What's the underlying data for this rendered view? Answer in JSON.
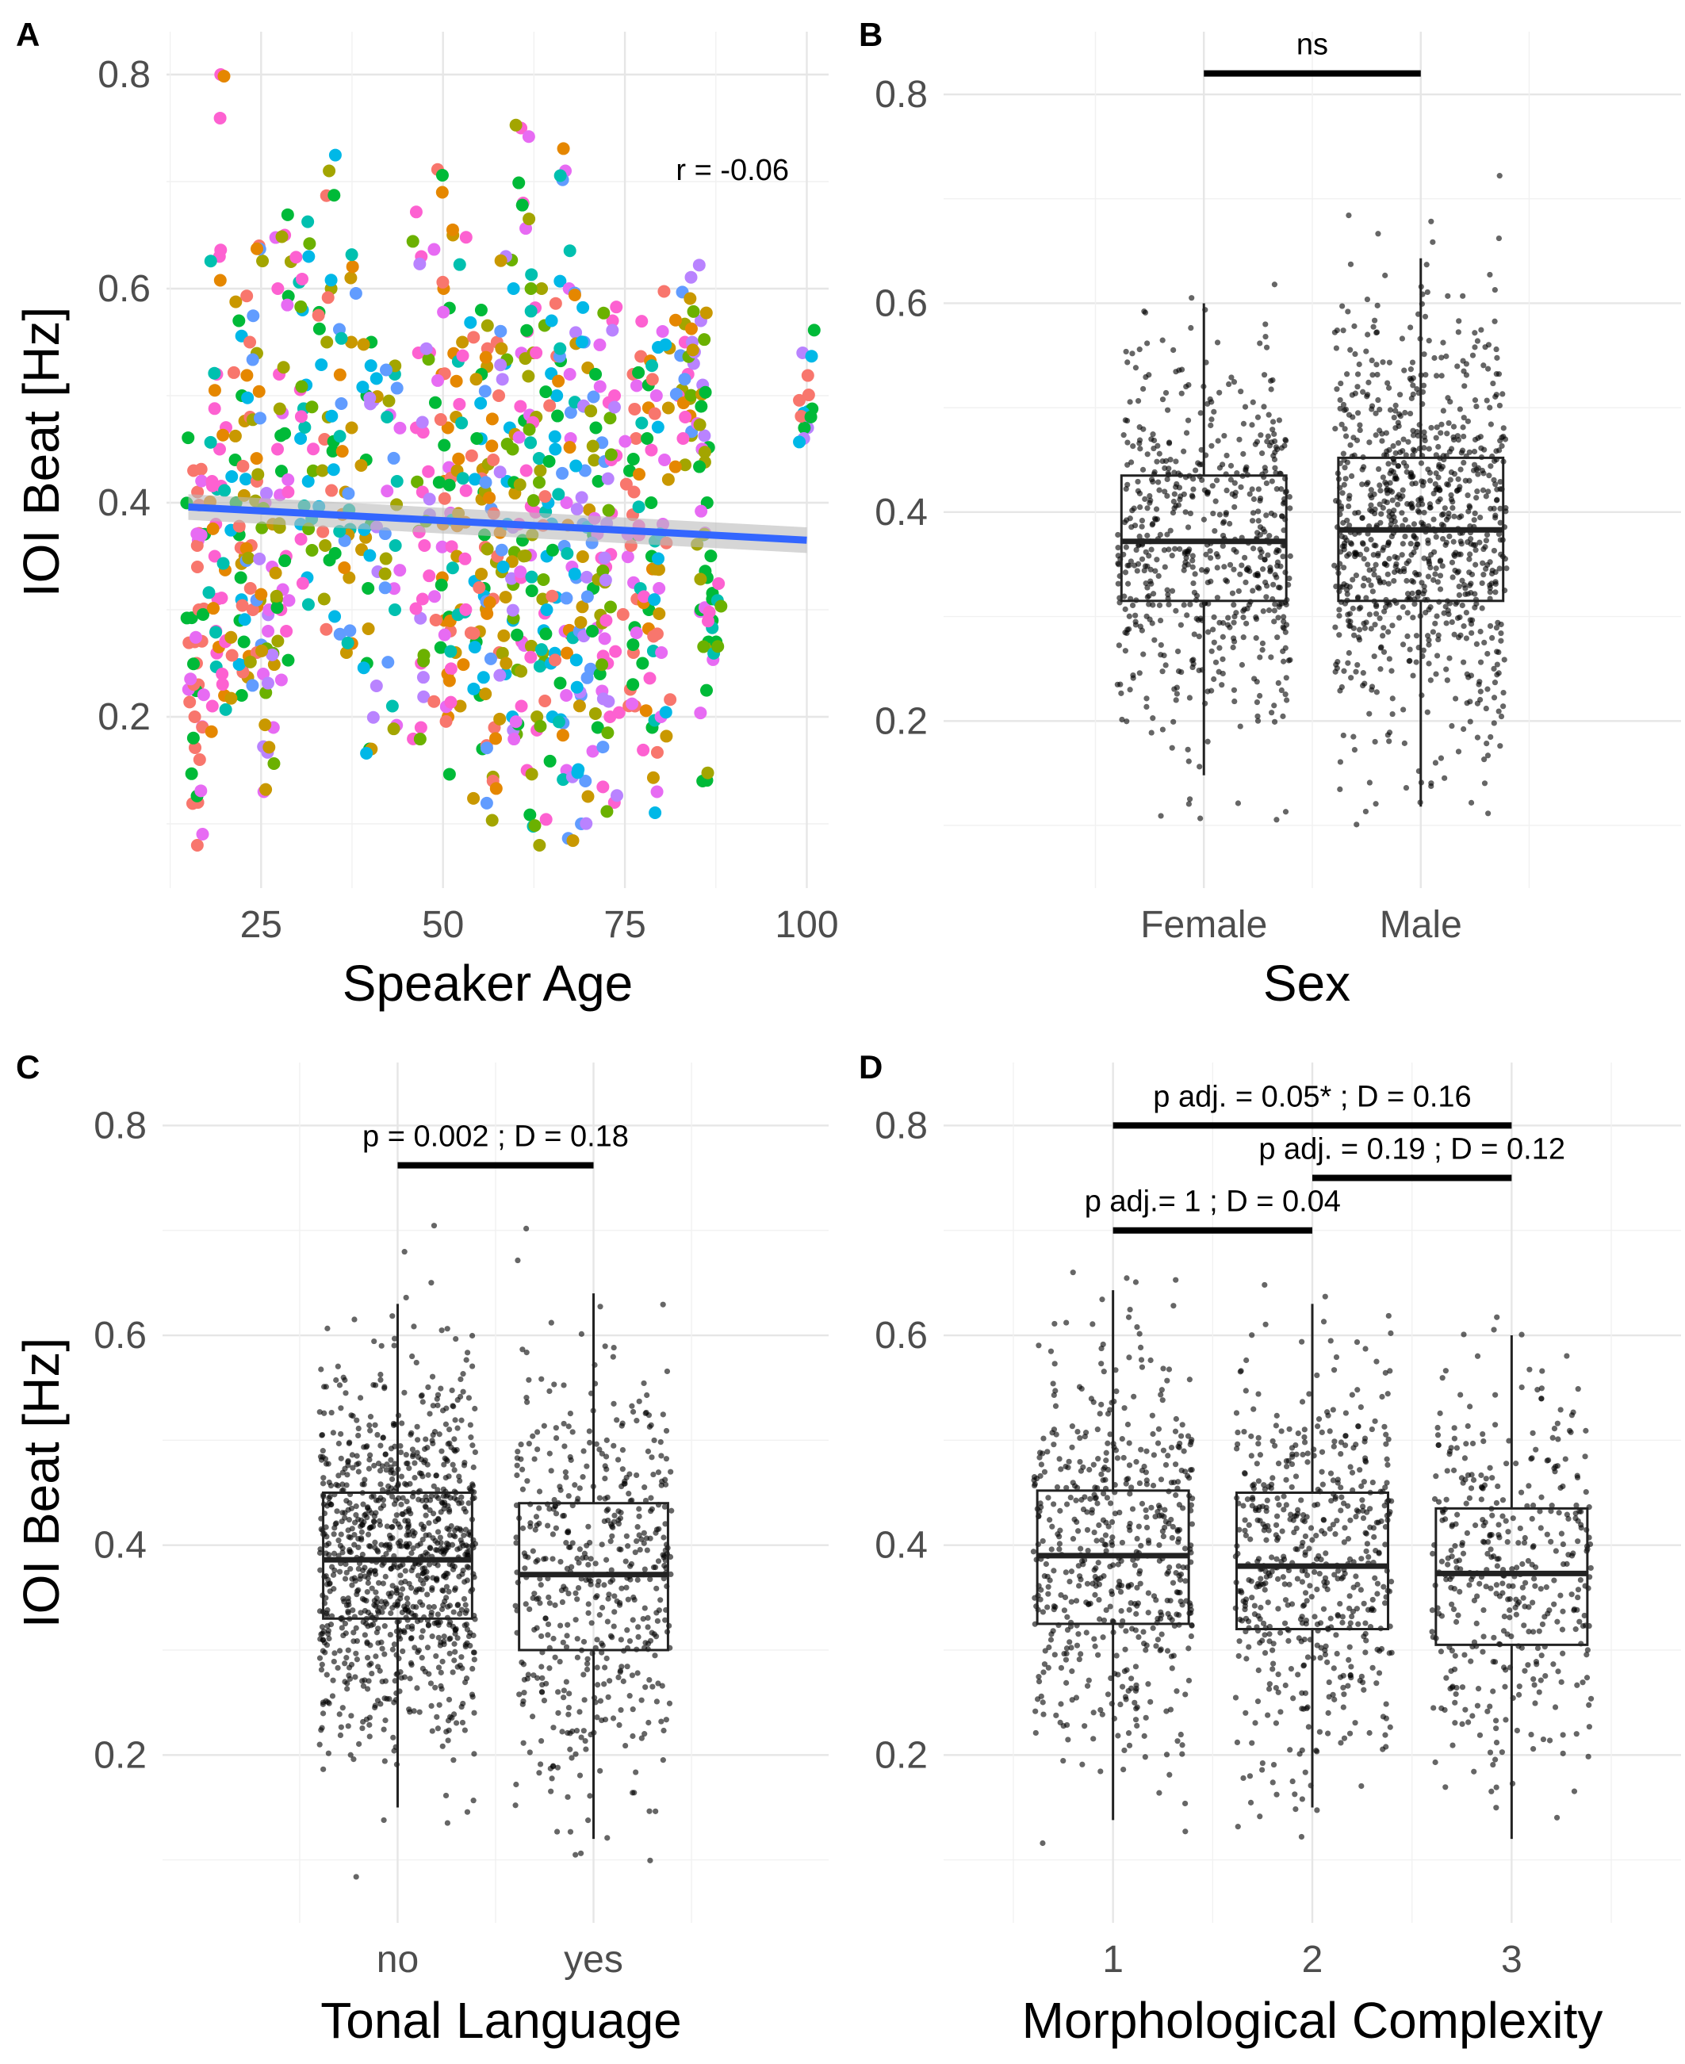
{
  "figure": {
    "panels": [
      {
        "id": "A",
        "letter": "A",
        "xlabel": "Speaker Age",
        "ylabel": "IOI Beat [Hz]"
      },
      {
        "id": "B",
        "letter": "B",
        "xlabel": "Sex",
        "ylabel": ""
      },
      {
        "id": "C",
        "letter": "C",
        "xlabel": "Tonal Language",
        "ylabel": "IOI Beat [Hz]"
      },
      {
        "id": "D",
        "letter": "D",
        "xlabel": "Morphological Complexity",
        "ylabel": ""
      }
    ]
  },
  "chart_data": [
    {
      "panel": "A",
      "type": "scatter",
      "xlabel": "Speaker Age",
      "ylabel": "IOI Beat [Hz]",
      "xlim": [
        12,
        103
      ],
      "ylim": [
        0.04,
        0.84
      ],
      "xticks": [
        25,
        50,
        75,
        100
      ],
      "yticks": [
        0.2,
        0.4,
        0.6,
        0.8
      ],
      "grid": true,
      "legend": "none",
      "point_colors": [
        "#F8766D",
        "#E58700",
        "#C99800",
        "#A3A500",
        "#6BB100",
        "#00BA38",
        "#00C0AF",
        "#00B8E7",
        "#619CFF",
        "#B983FF",
        "#E76BF3",
        "#FD61D1"
      ],
      "regression": {
        "x": [
          15,
          100
        ],
        "y": [
          0.396,
          0.365
        ],
        "color": "#3366FF",
        "ci_color": "#BBBBBB"
      },
      "annotation": "r = -0.06",
      "points_note": "dense colored clusters per speaker group between ages 15 and 100, IOI 0.08-0.80",
      "point_clusters": [
        {
          "age": 16,
          "color": "#F8766D",
          "values": [
            0.08,
            0.12,
            0.16,
            0.2,
            0.23,
            0.25,
            0.27,
            0.3,
            0.34,
            0.36,
            0.41,
            0.43
          ]
        },
        {
          "age": 19,
          "color": "#FD61D1",
          "values": [
            0.8,
            0.63,
            0.52,
            0.45,
            0.42,
            0.38,
            0.35,
            0.31,
            0.28,
            0.24,
            0.21
          ]
        },
        {
          "age": 22,
          "color": "#00BA38",
          "values": [
            0.57,
            0.5,
            0.44,
            0.4,
            0.37,
            0.33,
            0.29,
            0.27,
            0.22
          ]
        },
        {
          "age": 24,
          "color": "#F8766D",
          "values": [
            0.64,
            0.55,
            0.48,
            0.42,
            0.36,
            0.32,
            0.3,
            0.26
          ]
        },
        {
          "age": 26,
          "color": "#E76BF3",
          "values": [
            0.13,
            0.19,
            0.24,
            0.28,
            0.3,
            0.34,
            0.4
          ]
        },
        {
          "age": 28,
          "color": "#FD61D1",
          "values": [
            0.65,
            0.6,
            0.52,
            0.45,
            0.41,
            0.35,
            0.3,
            0.28
          ]
        },
        {
          "age": 31,
          "color": "#00B8E7",
          "values": [
            0.63,
            0.58,
            0.51,
            0.46,
            0.42,
            0.38,
            0.33
          ]
        },
        {
          "age": 34,
          "color": "#A3A500",
          "values": [
            0.71,
            0.6,
            0.55,
            0.48,
            0.43,
            0.36,
            0.31
          ]
        },
        {
          "age": 37,
          "color": "#C99800",
          "values": [
            0.61,
            0.55,
            0.47,
            0.41,
            0.37,
            0.33,
            0.26
          ]
        },
        {
          "age": 40,
          "color": "#00BA38",
          "values": [
            0.55,
            0.5,
            0.44,
            0.38,
            0.32,
            0.25,
            0.17
          ]
        },
        {
          "age": 43,
          "color": "#00C0AF",
          "values": [
            0.52,
            0.48,
            0.42,
            0.36,
            0.3,
            0.21
          ]
        },
        {
          "age": 47,
          "color": "#FD61D1",
          "values": [
            0.63,
            0.54,
            0.47,
            0.41,
            0.36,
            0.31,
            0.25,
            0.19
          ]
        },
        {
          "age": 50,
          "color": "#E58700",
          "values": [
            0.69,
            0.6,
            0.52,
            0.47,
            0.42,
            0.38,
            0.33,
            0.29,
            0.24,
            0.2
          ]
        },
        {
          "age": 52,
          "color": "#C99800",
          "values": [
            0.65,
            0.55,
            0.48,
            0.43,
            0.39,
            0.35,
            0.3,
            0.26,
            0.21
          ]
        },
        {
          "age": 55,
          "color": "#00BA38",
          "values": [
            0.58,
            0.52,
            0.46,
            0.41,
            0.37,
            0.32,
            0.27,
            0.22,
            0.17
          ]
        },
        {
          "age": 57,
          "color": "#F8766D",
          "values": [
            0.55,
            0.5,
            0.44,
            0.39,
            0.35,
            0.31,
            0.26,
            0.19,
            0.14
          ]
        },
        {
          "age": 59,
          "color": "#00B8E7",
          "values": [
            0.6,
            0.53,
            0.47,
            0.42,
            0.38,
            0.34,
            0.29,
            0.24,
            0.2
          ]
        },
        {
          "age": 61,
          "color": "#FD61D1",
          "values": [
            0.75,
            0.68,
            0.56,
            0.49,
            0.43,
            0.38,
            0.33,
            0.27,
            0.21,
            0.15
          ]
        },
        {
          "age": 63,
          "color": "#A3A500",
          "values": [
            0.6,
            0.54,
            0.48,
            0.43,
            0.37,
            0.31,
            0.26,
            0.2,
            0.08
          ]
        },
        {
          "age": 65,
          "color": "#00B8E7",
          "values": [
            0.57,
            0.5,
            0.45,
            0.4,
            0.35,
            0.3,
            0.25,
            0.2
          ]
        },
        {
          "age": 67,
          "color": "#E76BF3",
          "values": [
            0.71,
            0.6,
            0.52,
            0.46,
            0.4,
            0.34,
            0.28,
            0.22,
            0.15
          ]
        },
        {
          "age": 69,
          "color": "#619CFF",
          "values": [
            0.55,
            0.49,
            0.43,
            0.38,
            0.33,
            0.28,
            0.22,
            0.14,
            0.1
          ]
        },
        {
          "age": 71,
          "color": "#00BA38",
          "values": [
            0.52,
            0.47,
            0.42,
            0.37,
            0.32,
            0.28,
            0.24,
            0.19
          ]
        },
        {
          "age": 73,
          "color": "#FD61D1",
          "values": [
            0.57,
            0.5,
            0.44,
            0.39,
            0.34,
            0.29,
            0.25,
            0.2,
            0.12
          ]
        },
        {
          "age": 76,
          "color": "#F8766D",
          "values": [
            0.52,
            0.46,
            0.41,
            0.36,
            0.31,
            0.26,
            0.21
          ]
        },
        {
          "age": 78,
          "color": "#00BA38",
          "values": [
            0.51,
            0.46,
            0.4,
            0.35,
            0.3,
            0.25,
            0.19
          ]
        },
        {
          "age": 80,
          "color": "#E76BF3",
          "values": [
            0.56,
            0.5,
            0.44,
            0.38,
            0.32,
            0.26,
            0.2,
            0.13
          ]
        },
        {
          "age": 83,
          "color": "#FD61D1",
          "values": [
            0.55,
            0.52,
            0.5,
            0.48,
            0.46
          ]
        },
        {
          "age": 85,
          "color": "#B983FF",
          "values": [
            0.57,
            0.55,
            0.53,
            0.51
          ]
        },
        {
          "age": 86,
          "color": "#00BA38",
          "values": [
            0.49,
            0.45,
            0.4,
            0.37,
            0.33,
            0.3,
            0.27,
            0.14
          ]
        },
        {
          "age": 87,
          "color": "#00BA38",
          "values": [
            0.31,
            0.29,
            0.27
          ]
        },
        {
          "age": 100,
          "color": "#B983FF",
          "values": [
            0.54,
            0.48,
            0.47,
            0.46
          ]
        }
      ]
    },
    {
      "panel": "B",
      "type": "box",
      "xlabel": "Sex",
      "ylabel": "IOI Beat [Hz]",
      "categories": [
        "Female",
        "Male"
      ],
      "ylim": [
        0.04,
        0.86
      ],
      "yticks": [
        0.2,
        0.4,
        0.6,
        0.8
      ],
      "boxes": [
        {
          "q1": 0.315,
          "median": 0.372,
          "q3": 0.435,
          "whisker_low": 0.148,
          "whisker_high": 0.6,
          "n_points": 600,
          "point_min": 0.08,
          "point_max": 0.75
        },
        {
          "q1": 0.315,
          "median": 0.383,
          "q3": 0.452,
          "whisker_low": 0.118,
          "whisker_high": 0.643,
          "n_points": 900,
          "point_min": 0.08,
          "point_max": 0.8
        }
      ],
      "brackets": [
        {
          "from": 0,
          "to": 1,
          "y": 0.82,
          "label": "ns"
        }
      ]
    },
    {
      "panel": "C",
      "type": "box",
      "xlabel": "Tonal Language",
      "ylabel": "IOI Beat [Hz]",
      "categories": [
        "no",
        "yes"
      ],
      "ylim": [
        0.04,
        0.86
      ],
      "yticks": [
        0.2,
        0.4,
        0.6,
        0.8
      ],
      "boxes": [
        {
          "q1": 0.33,
          "median": 0.386,
          "q3": 0.45,
          "whisker_low": 0.15,
          "whisker_high": 0.63,
          "n_points": 1000,
          "point_min": 0.08,
          "point_max": 0.75
        },
        {
          "q1": 0.3,
          "median": 0.372,
          "q3": 0.44,
          "whisker_low": 0.12,
          "whisker_high": 0.64,
          "n_points": 500,
          "point_min": 0.08,
          "point_max": 0.71
        }
      ],
      "brackets": [
        {
          "from": 0,
          "to": 1,
          "y": 0.762,
          "label": "p = 0.002 ; D = 0.18"
        }
      ]
    },
    {
      "panel": "D",
      "type": "box",
      "xlabel": "Morphological Complexity",
      "ylabel": "IOI Beat [Hz]",
      "categories": [
        "1",
        "2",
        "3"
      ],
      "ylim": [
        0.04,
        0.86
      ],
      "yticks": [
        0.2,
        0.4,
        0.6,
        0.8
      ],
      "boxes": [
        {
          "q1": 0.325,
          "median": 0.39,
          "q3": 0.452,
          "whisker_low": 0.138,
          "whisker_high": 0.643,
          "n_points": 550,
          "point_min": 0.08,
          "point_max": 0.7
        },
        {
          "q1": 0.32,
          "median": 0.38,
          "q3": 0.45,
          "whisker_low": 0.15,
          "whisker_high": 0.63,
          "n_points": 550,
          "point_min": 0.08,
          "point_max": 0.65
        },
        {
          "q1": 0.305,
          "median": 0.373,
          "q3": 0.435,
          "whisker_low": 0.12,
          "whisker_high": 0.6,
          "n_points": 400,
          "point_min": 0.12,
          "point_max": 0.69
        }
      ],
      "brackets": [
        {
          "from": 0,
          "to": 2,
          "y": 0.8,
          "label": "p adj. = 0.05* ; D = 0.16"
        },
        {
          "from": 1,
          "to": 2,
          "y": 0.75,
          "label": "p adj. = 0.19 ; D = 0.12"
        },
        {
          "from": 0,
          "to": 1,
          "y": 0.7,
          "label": "p adj.= 1 ; D = 0.04"
        }
      ]
    }
  ]
}
